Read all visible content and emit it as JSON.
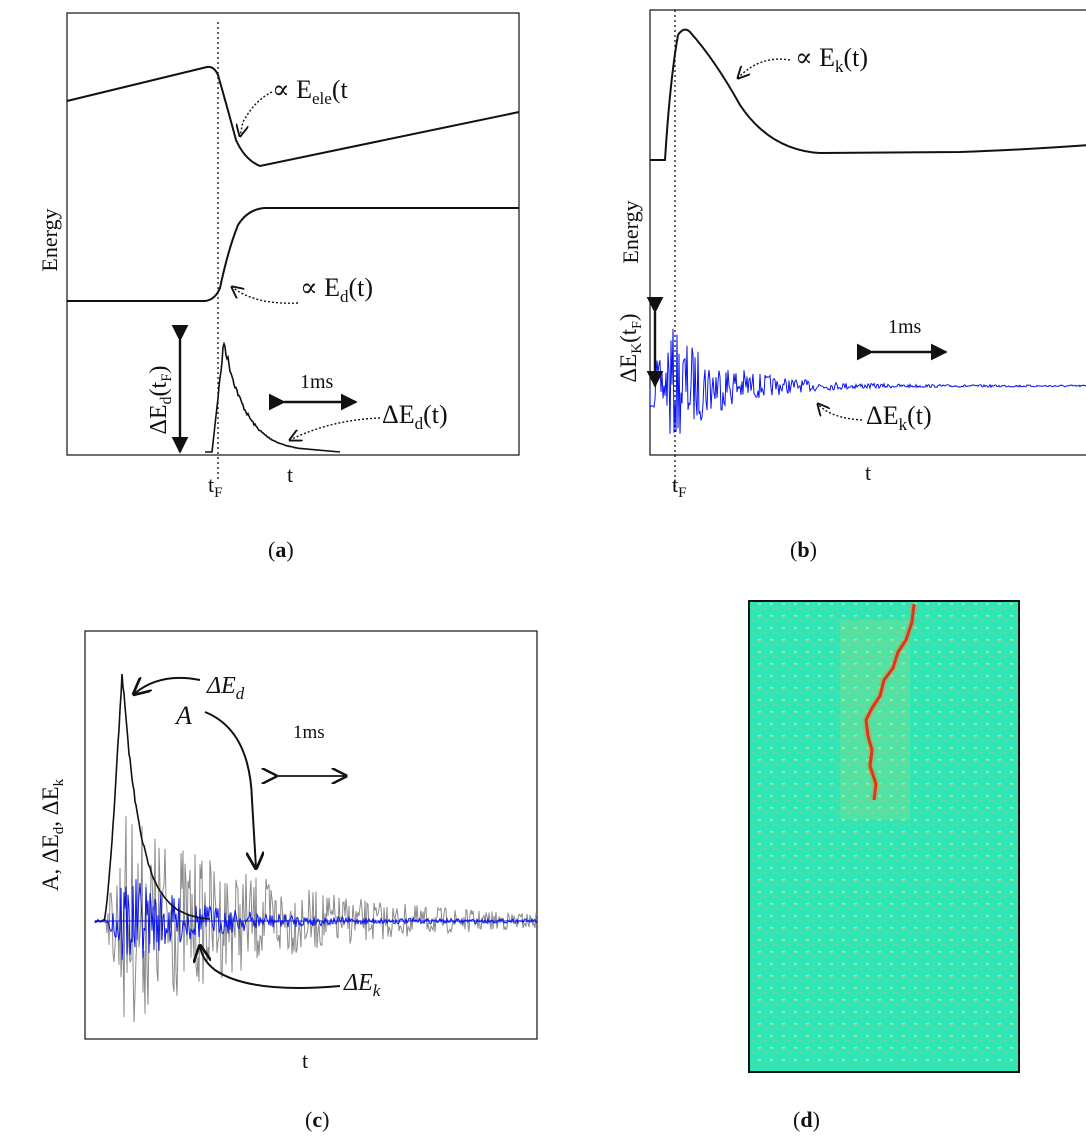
{
  "panels": {
    "a": {
      "caption": "a",
      "y_label": "Energy",
      "curve_eele": "∝ E",
      "curve_eele_sub": "ele",
      "curve_eele_tail": "(t",
      "curve_ed": "∝ E",
      "curve_ed_sub": "d",
      "curve_ed_tail": "(t)",
      "delta_label": "ΔE",
      "delta_sub": "d",
      "delta_tail": "(t",
      "delta_tail_sub": "F",
      "delta_tail_end": ")",
      "scale_label": "1ms",
      "signal_label": "ΔE",
      "signal_sub": "d",
      "signal_tail": "(t)",
      "tick_tf": "t",
      "tick_tf_sub": "F",
      "tick_t": "t"
    },
    "b": {
      "caption": "b",
      "y_label": "Energy",
      "curve_ek": "∝ E",
      "curve_ek_sub": "k",
      "curve_ek_tail": "(t)",
      "delta_label": "ΔE",
      "delta_sub": "K",
      "delta_tail": "(t",
      "delta_tail_sub": "F",
      "delta_tail_end": ")",
      "scale_label": "1ms",
      "signal_label": "ΔE",
      "signal_sub": "k",
      "signal_tail": "(t)",
      "tick_tf": "t",
      "tick_tf_sub": "F",
      "tick_t": "t"
    },
    "c": {
      "caption": "c",
      "y_label_a": "A, ΔE",
      "y_label_sub1": "d",
      "y_label_b": ", ΔE",
      "y_label_sub2": "k",
      "label_ed": "ΔE",
      "label_ed_sub": "d",
      "label_a": "A",
      "label_ek": "ΔE",
      "label_ek_sub": "k",
      "scale_label": "1ms",
      "x_label": "t"
    },
    "d": {
      "caption": "d"
    }
  },
  "colors": {
    "ink": "#111111",
    "blue_signal": "#0a14f0",
    "grey_signal": "#8a8a8a",
    "field_bg": "#2fe6b6",
    "crack": "#d01010"
  }
}
